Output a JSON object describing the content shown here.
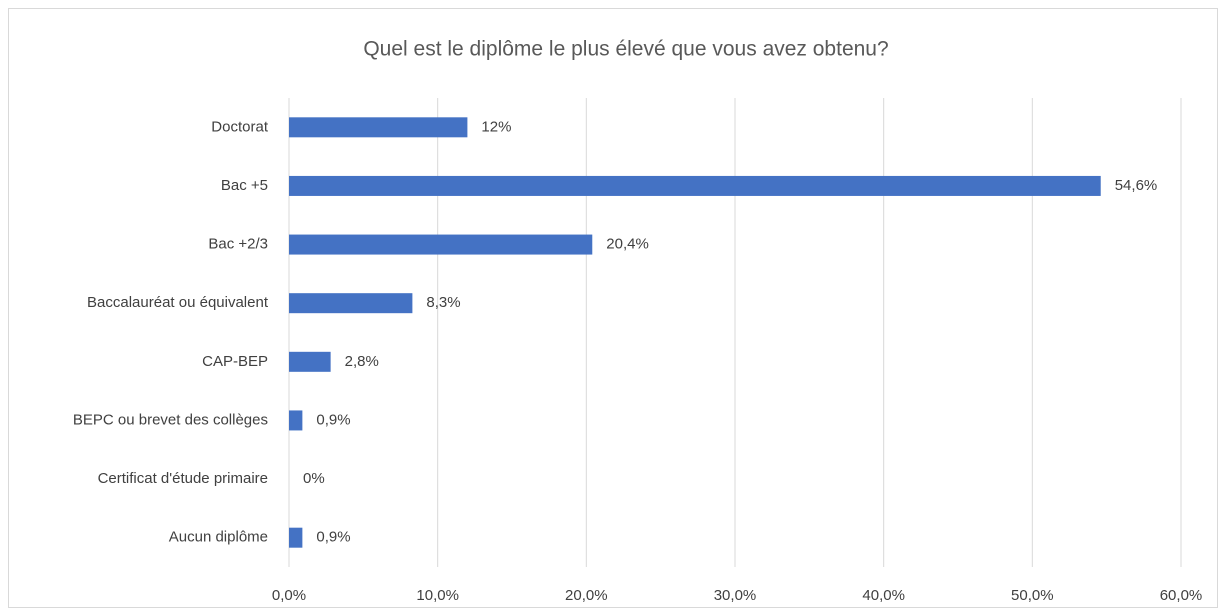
{
  "chart_data": {
    "type": "bar",
    "orientation": "horizontal",
    "title": "Quel est le diplôme le plus élevé que vous avez obtenu?",
    "categories": [
      "Doctorat",
      "Bac +5",
      "Bac +2/3",
      "Baccalauréat ou équivalent",
      "CAP-BEP",
      "BEPC ou brevet des collèges",
      "Certificat d'étude primaire",
      "Aucun diplôme"
    ],
    "values": [
      12,
      54.6,
      20.4,
      8.3,
      2.8,
      0.9,
      0,
      0.9
    ],
    "value_labels": [
      "12%",
      "54,6%",
      "20,4%",
      "8,3%",
      "2,8%",
      "0,9%",
      "0%",
      "0,9%"
    ],
    "color": "#4472c4",
    "xlim": [
      0,
      60
    ],
    "xticks": [
      {
        "value": 0,
        "label": "0,0%"
      },
      {
        "value": 10,
        "label": "10,0%"
      },
      {
        "value": 20,
        "label": "20,0%"
      },
      {
        "value": 30,
        "label": "30,0%"
      },
      {
        "value": 40,
        "label": "40,0%"
      },
      {
        "value": 50,
        "label": "50,0%"
      },
      {
        "value": 60,
        "label": "60,0%"
      }
    ],
    "grid": true
  }
}
